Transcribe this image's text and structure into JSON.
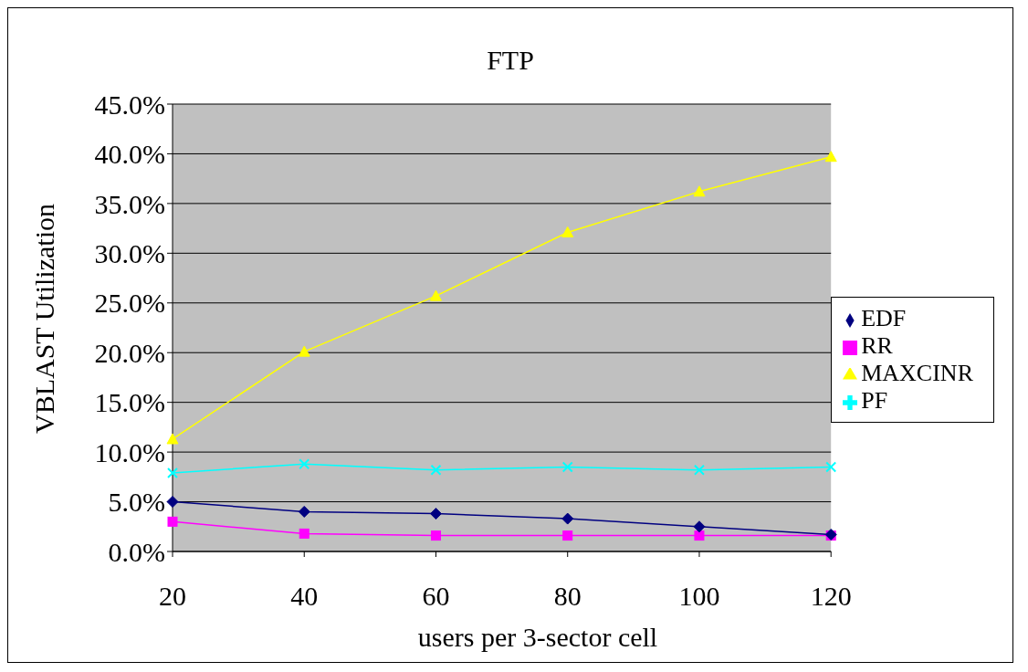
{
  "chart_data": {
    "type": "line",
    "title": "FTP",
    "xlabel": "users per 3-sector cell",
    "ylabel": "VBLAST Utilization",
    "categories": [
      "20",
      "40",
      "60",
      "80",
      "100",
      "120"
    ],
    "series": [
      {
        "name": "EDF",
        "color": "#000080",
        "marker": "diamond",
        "values": [
          5.0,
          4.0,
          3.8,
          3.3,
          2.5,
          1.7
        ]
      },
      {
        "name": "RR",
        "color": "#ff00ff",
        "marker": "square",
        "values": [
          3.0,
          1.8,
          1.6,
          1.6,
          1.6,
          1.6
        ]
      },
      {
        "name": "MAXCINR",
        "color": "#ffff00",
        "marker": "triangle",
        "values": [
          11.3,
          20.1,
          25.7,
          32.1,
          36.2,
          39.7
        ]
      },
      {
        "name": "PF",
        "color": "#00ffff",
        "marker": "cross",
        "values": [
          7.9,
          8.8,
          8.2,
          8.5,
          8.2,
          8.5
        ]
      }
    ],
    "ylim": [
      0,
      45
    ],
    "yticks": [
      {
        "value": 0,
        "label": "0.0%"
      },
      {
        "value": 5,
        "label": "5.0%"
      },
      {
        "value": 10,
        "label": "10.0%"
      },
      {
        "value": 15,
        "label": "15.0%"
      },
      {
        "value": 20,
        "label": "20.0%"
      },
      {
        "value": 25,
        "label": "25.0%"
      },
      {
        "value": 30,
        "label": "30.0%"
      },
      {
        "value": 35,
        "label": "35.0%"
      },
      {
        "value": 40,
        "label": "40.0%"
      },
      {
        "value": 45,
        "label": "45.0%"
      }
    ],
    "grid": "y",
    "legend": "right"
  }
}
